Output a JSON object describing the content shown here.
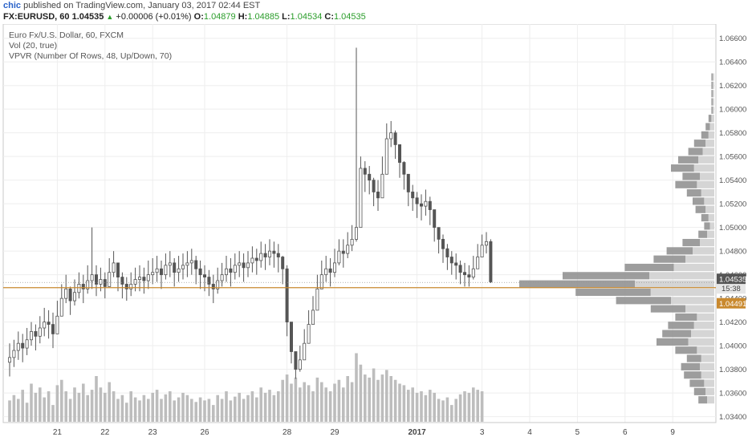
{
  "header": {
    "user": "chic",
    "published_text": "published on TradingView.com, January 03, 2017 02:44 EST",
    "symbol": "FX:EURUSD, 60",
    "last_price": "1.04535",
    "change": "+0.00006 (+0.01%)",
    "ohlc": [
      {
        "label": "O:",
        "value": "1.04879"
      },
      {
        "label": "H:",
        "value": "1.04885"
      },
      {
        "label": "L:",
        "value": "1.04534"
      },
      {
        "label": "C:",
        "value": "1.04535"
      }
    ]
  },
  "legend": {
    "title": "Euro Fx/U.S. Dollar, 60, FXCM",
    "vol": "Vol (20, true)",
    "vpvr": "VPVR (Number Of Rows, 48, Up/Down, 70)"
  },
  "colors": {
    "candle": "#555555",
    "volume": "#bdbdbd",
    "poc_line": "#c9892e",
    "price_badge": "#555555",
    "price_tag": "#c9892e",
    "vpvr_dark": "#8c8c8c",
    "vpvr_light": "#d0d0d0"
  },
  "chart_data": {
    "type": "candlestick",
    "ylim": [
      1.0335,
      1.0672
    ],
    "y_ticks": [
      "1.06600",
      "1.06400",
      "1.06200",
      "1.06000",
      "1.05800",
      "1.05600",
      "1.05400",
      "1.05200",
      "1.05000",
      "1.04800",
      "1.04600",
      "1.04400",
      "1.04200",
      "1.04000",
      "1.03800",
      "1.03600",
      "1.03400"
    ],
    "x_ticks": [
      {
        "label": "21",
        "idx": 11
      },
      {
        "label": "22",
        "idx": 22
      },
      {
        "label": "23",
        "idx": 33
      },
      {
        "label": "26",
        "idx": 45
      },
      {
        "label": "28",
        "idx": 64
      },
      {
        "label": "29",
        "idx": 75
      },
      {
        "label": "2017",
        "idx": 94,
        "bold": true
      },
      {
        "label": "3",
        "idx": 109
      },
      {
        "label": "4",
        "idx": 120
      },
      {
        "label": "5",
        "idx": 131
      },
      {
        "label": "6",
        "idx": 142
      },
      {
        "label": "9",
        "idx": 153
      }
    ],
    "closes": [
      1.039,
      1.0396,
      1.0402,
      1.0398,
      1.0405,
      1.0412,
      1.0408,
      1.0415,
      1.042,
      1.0418,
      1.041,
      1.0425,
      1.044,
      1.0448,
      1.0438,
      1.0445,
      1.0452,
      1.0448,
      1.0455,
      1.046,
      1.0452,
      1.0456,
      1.045,
      1.0462,
      1.047,
      1.0458,
      1.0452,
      1.0448,
      1.0452,
      1.0456,
      1.0458,
      1.0455,
      1.046,
      1.0462,
      1.0465,
      1.046,
      1.0468,
      1.047,
      1.0462,
      1.0465,
      1.0468,
      1.047,
      1.0472,
      1.0465,
      1.046,
      1.0458,
      1.0452,
      1.0448,
      1.0455,
      1.046,
      1.0465,
      1.0462,
      1.0468,
      1.047,
      1.0466,
      1.047,
      1.0474,
      1.0472,
      1.0478,
      1.0475,
      1.048,
      1.0478,
      1.0475,
      1.0465,
      1.042,
      1.0395,
      1.038,
      1.0388,
      1.0402,
      1.0418,
      1.043,
      1.0448,
      1.046,
      1.0465,
      1.0462,
      1.047,
      1.048,
      1.0478,
      1.0485,
      1.049,
      1.05,
      1.055,
      1.0545,
      1.054,
      1.053,
      1.0525,
      1.0545,
      1.0575,
      1.058,
      1.057,
      1.0555,
      1.0545,
      1.053,
      1.0525,
      1.052,
      1.0518,
      1.0522,
      1.0515,
      1.05,
      1.049,
      1.0482,
      1.0475,
      1.047,
      1.0468,
      1.0462,
      1.046,
      1.0458,
      1.0465,
      1.0475,
      1.0485,
      1.0488,
      1.0454
    ],
    "highs": [
      1.0402,
      1.0405,
      1.0412,
      1.041,
      1.0415,
      1.042,
      1.0418,
      1.0425,
      1.0432,
      1.043,
      1.0428,
      1.0438,
      1.0452,
      1.046,
      1.045,
      1.0456,
      1.0462,
      1.046,
      1.0468,
      1.05,
      1.0468,
      1.0466,
      1.0462,
      1.0474,
      1.048,
      1.047,
      1.0462,
      1.0458,
      1.0462,
      1.0466,
      1.0468,
      1.0466,
      1.0472,
      1.0474,
      1.0476,
      1.0472,
      1.0478,
      1.048,
      1.0474,
      1.0476,
      1.0478,
      1.048,
      1.0482,
      1.0476,
      1.0472,
      1.0468,
      1.0464,
      1.046,
      1.0466,
      1.047,
      1.0476,
      1.0474,
      1.0478,
      1.048,
      1.0478,
      1.048,
      1.0484,
      1.0482,
      1.0488,
      1.0486,
      1.049,
      1.0488,
      1.0486,
      1.0476,
      1.0468,
      1.041,
      1.0395,
      1.04,
      1.0414,
      1.043,
      1.0442,
      1.046,
      1.0472,
      1.0476,
      1.0474,
      1.0482,
      1.049,
      1.049,
      1.0496,
      1.0502,
      1.0652,
      1.056,
      1.0556,
      1.0552,
      1.0542,
      1.054,
      1.056,
      1.0588,
      1.059,
      1.0582,
      1.0566,
      1.0556,
      1.0542,
      1.0536,
      1.053,
      1.0528,
      1.0532,
      1.0526,
      1.0512,
      1.05,
      1.0494,
      1.0486,
      1.048,
      1.0478,
      1.0472,
      1.047,
      1.0468,
      1.0476,
      1.0486,
      1.0494,
      1.0496,
      1.049
    ],
    "lows": [
      1.0374,
      1.0382,
      1.0388,
      1.0386,
      1.0392,
      1.04,
      1.0396,
      1.0402,
      1.0408,
      1.0406,
      1.0398,
      1.0412,
      1.0428,
      1.0436,
      1.0426,
      1.0434,
      1.044,
      1.0436,
      1.0444,
      1.0448,
      1.0442,
      1.0446,
      1.044,
      1.045,
      1.0458,
      1.0446,
      1.044,
      1.0438,
      1.0442,
      1.0446,
      1.0446,
      1.0444,
      1.0448,
      1.0452,
      1.0454,
      1.0448,
      1.0456,
      1.0458,
      1.045,
      1.0454,
      1.0456,
      1.0458,
      1.046,
      1.0452,
      1.0448,
      1.0446,
      1.0442,
      1.0436,
      1.0444,
      1.045,
      1.0454,
      1.045,
      1.0456,
      1.0458,
      1.0454,
      1.0458,
      1.0462,
      1.046,
      1.0466,
      1.0464,
      1.0468,
      1.0466,
      1.0462,
      1.0452,
      1.0408,
      1.0385,
      1.0372,
      1.0378,
      1.039,
      1.0406,
      1.0418,
      1.0436,
      1.0448,
      1.0454,
      1.045,
      1.0458,
      1.0468,
      1.0466,
      1.0474,
      1.048,
      1.0488,
      1.052,
      1.053,
      1.0528,
      1.0518,
      1.0514,
      1.0532,
      1.0562,
      1.0568,
      1.0558,
      1.0542,
      1.0532,
      1.0518,
      1.0514,
      1.0508,
      1.0506,
      1.051,
      1.0502,
      1.0488,
      1.0478,
      1.047,
      1.0464,
      1.046,
      1.0456,
      1.0452,
      1.045,
      1.045,
      1.0456,
      1.0466,
      1.0476,
      1.0478,
      1.0453
    ],
    "volumes": [
      0.28,
      0.35,
      0.3,
      0.42,
      0.25,
      0.5,
      0.38,
      0.45,
      0.32,
      0.4,
      0.22,
      0.48,
      0.55,
      0.4,
      0.3,
      0.45,
      0.38,
      0.5,
      0.35,
      0.42,
      0.6,
      0.45,
      0.38,
      0.52,
      0.4,
      0.3,
      0.35,
      0.25,
      0.4,
      0.32,
      0.28,
      0.35,
      0.3,
      0.38,
      0.42,
      0.3,
      0.36,
      0.4,
      0.28,
      0.32,
      0.38,
      0.35,
      0.3,
      0.26,
      0.32,
      0.28,
      0.3,
      0.22,
      0.35,
      0.3,
      0.4,
      0.28,
      0.33,
      0.38,
      0.3,
      0.35,
      0.4,
      0.32,
      0.45,
      0.38,
      0.42,
      0.35,
      0.4,
      0.55,
      0.62,
      0.5,
      0.58,
      0.45,
      0.52,
      0.48,
      0.4,
      0.58,
      0.52,
      0.45,
      0.4,
      0.5,
      0.55,
      0.45,
      0.6,
      0.52,
      0.9,
      0.75,
      0.62,
      0.58,
      0.7,
      0.55,
      0.62,
      0.68,
      0.6,
      0.55,
      0.5,
      0.48,
      0.42,
      0.45,
      0.38,
      0.4,
      0.35,
      0.42,
      0.38,
      0.3,
      0.28,
      0.32,
      0.22,
      0.3,
      0.36,
      0.4,
      0.38,
      0.45,
      0.42,
      0.4
    ],
    "vp_up_rows": [
      {
        "price": 1.0354,
        "value": 0.06
      },
      {
        "price": 1.0361,
        "value": 0.08
      },
      {
        "price": 1.0368,
        "value": 0.1
      },
      {
        "price": 1.0375,
        "value": 0.12
      },
      {
        "price": 1.0382,
        "value": 0.13
      },
      {
        "price": 1.0389,
        "value": 0.1
      },
      {
        "price": 1.0396,
        "value": 0.15
      },
      {
        "price": 1.0403,
        "value": 0.22
      },
      {
        "price": 1.041,
        "value": 0.2
      },
      {
        "price": 1.0417,
        "value": 0.18
      },
      {
        "price": 1.0424,
        "value": 0.15
      },
      {
        "price": 1.0431,
        "value": 0.24
      },
      {
        "price": 1.0438,
        "value": 0.38
      },
      {
        "price": 1.0445,
        "value": 0.52
      },
      {
        "price": 1.0452,
        "value": 0.8
      },
      {
        "price": 1.0459,
        "value": 0.6
      },
      {
        "price": 1.0466,
        "value": 0.34
      },
      {
        "price": 1.0473,
        "value": 0.22
      },
      {
        "price": 1.048,
        "value": 0.18
      },
      {
        "price": 1.0487,
        "value": 0.12
      },
      {
        "price": 1.0494,
        "value": 0.06
      },
      {
        "price": 1.0501,
        "value": 0.04
      },
      {
        "price": 1.0508,
        "value": 0.05
      },
      {
        "price": 1.0515,
        "value": 0.07
      },
      {
        "price": 1.0522,
        "value": 0.08
      },
      {
        "price": 1.0529,
        "value": 0.1
      },
      {
        "price": 1.0536,
        "value": 0.15
      },
      {
        "price": 1.0543,
        "value": 0.12
      },
      {
        "price": 1.055,
        "value": 0.16
      },
      {
        "price": 1.0557,
        "value": 0.14
      },
      {
        "price": 1.0564,
        "value": 0.1
      },
      {
        "price": 1.0571,
        "value": 0.08
      },
      {
        "price": 1.0578,
        "value": 0.05
      },
      {
        "price": 1.0585,
        "value": 0.03
      },
      {
        "price": 1.0592,
        "value": 0.02
      },
      {
        "price": 1.0599,
        "value": 0.01
      },
      {
        "price": 1.0606,
        "value": 0.01
      },
      {
        "price": 1.0613,
        "value": 0.01
      },
      {
        "price": 1.062,
        "value": 0.01
      },
      {
        "price": 1.0627,
        "value": 0.01
      }
    ],
    "vp_down_rows": [
      {
        "price": 1.0354,
        "value": 0.05
      },
      {
        "price": 1.0361,
        "value": 0.06
      },
      {
        "price": 1.0368,
        "value": 0.07
      },
      {
        "price": 1.0375,
        "value": 0.09
      },
      {
        "price": 1.0382,
        "value": 0.1
      },
      {
        "price": 1.0389,
        "value": 0.09
      },
      {
        "price": 1.0396,
        "value": 0.12
      },
      {
        "price": 1.0403,
        "value": 0.18
      },
      {
        "price": 1.041,
        "value": 0.16
      },
      {
        "price": 1.0417,
        "value": 0.14
      },
      {
        "price": 1.0424,
        "value": 0.12
      },
      {
        "price": 1.0431,
        "value": 0.2
      },
      {
        "price": 1.0438,
        "value": 0.3
      },
      {
        "price": 1.0445,
        "value": 0.44
      },
      {
        "price": 1.0452,
        "value": 0.55
      },
      {
        "price": 1.0459,
        "value": 0.45
      },
      {
        "price": 1.0466,
        "value": 0.28
      },
      {
        "price": 1.0473,
        "value": 0.2
      },
      {
        "price": 1.048,
        "value": 0.15
      },
      {
        "price": 1.0487,
        "value": 0.1
      },
      {
        "price": 1.0494,
        "value": 0.05
      },
      {
        "price": 1.0501,
        "value": 0.03
      },
      {
        "price": 1.0508,
        "value": 0.04
      },
      {
        "price": 1.0515,
        "value": 0.06
      },
      {
        "price": 1.0522,
        "value": 0.07
      },
      {
        "price": 1.0529,
        "value": 0.09
      },
      {
        "price": 1.0536,
        "value": 0.12
      },
      {
        "price": 1.0543,
        "value": 0.1
      },
      {
        "price": 1.055,
        "value": 0.14
      },
      {
        "price": 1.0557,
        "value": 0.11
      },
      {
        "price": 1.0564,
        "value": 0.08
      },
      {
        "price": 1.0571,
        "value": 0.06
      },
      {
        "price": 1.0578,
        "value": 0.04
      },
      {
        "price": 1.0585,
        "value": 0.03
      },
      {
        "price": 1.0592,
        "value": 0.02
      },
      {
        "price": 1.0599,
        "value": 0.01
      },
      {
        "price": 1.0606,
        "value": 0.01
      },
      {
        "price": 1.0613,
        "value": 0.01
      },
      {
        "price": 1.062,
        "value": 0.01
      },
      {
        "price": 1.0627,
        "value": 0.01
      }
    ],
    "poc_price": 1.04491,
    "last_price": 1.04535,
    "price_labels": {
      "last": "1.04535",
      "countdown": "15:38",
      "poc": "1.04491"
    }
  }
}
